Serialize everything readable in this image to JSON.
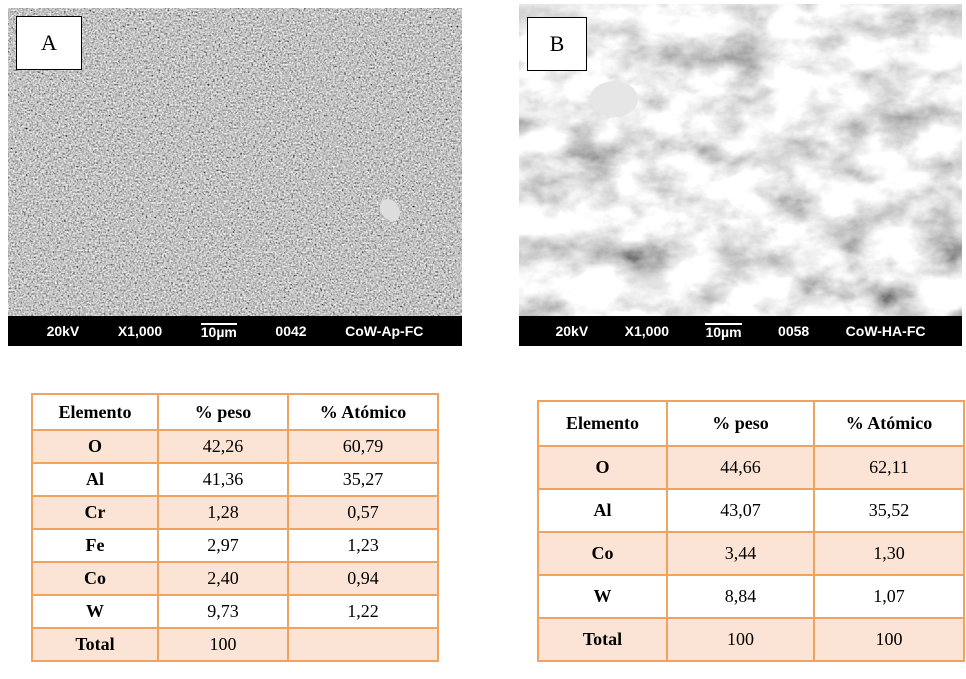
{
  "panels": [
    {
      "label": "A",
      "info": [
        "20kV",
        "X1,000",
        "10µm",
        "0042",
        "CoW-Ap-FC"
      ]
    },
    {
      "label": "B",
      "info": [
        "20kV",
        "X1,000",
        "10µm",
        "0058",
        "CoW-HA-FC"
      ]
    }
  ],
  "tables": [
    {
      "header": [
        "Elemento",
        "% peso",
        "% Atómico"
      ],
      "rows": [
        [
          "O",
          "42,26",
          "60,79"
        ],
        [
          "Al",
          "41,36",
          "35,27"
        ],
        [
          "Cr",
          "1,28",
          "0,57"
        ],
        [
          "Fe",
          "2,97",
          "1,23"
        ],
        [
          "Co",
          "2,40",
          "0,94"
        ],
        [
          "W",
          "9,73",
          "1,22"
        ],
        [
          "Total",
          "100"
        ]
      ]
    },
    {
      "header": [
        "Elemento",
        "% peso",
        "% Atómico"
      ],
      "rows": [
        [
          "O",
          "44,66",
          "62,11"
        ],
        [
          "Al",
          "43,07",
          "35,52"
        ],
        [
          "Co",
          "3,44",
          "1,30"
        ],
        [
          "W",
          "8,84",
          "1,07"
        ],
        [
          "Total",
          "100",
          "100"
        ]
      ]
    }
  ]
}
